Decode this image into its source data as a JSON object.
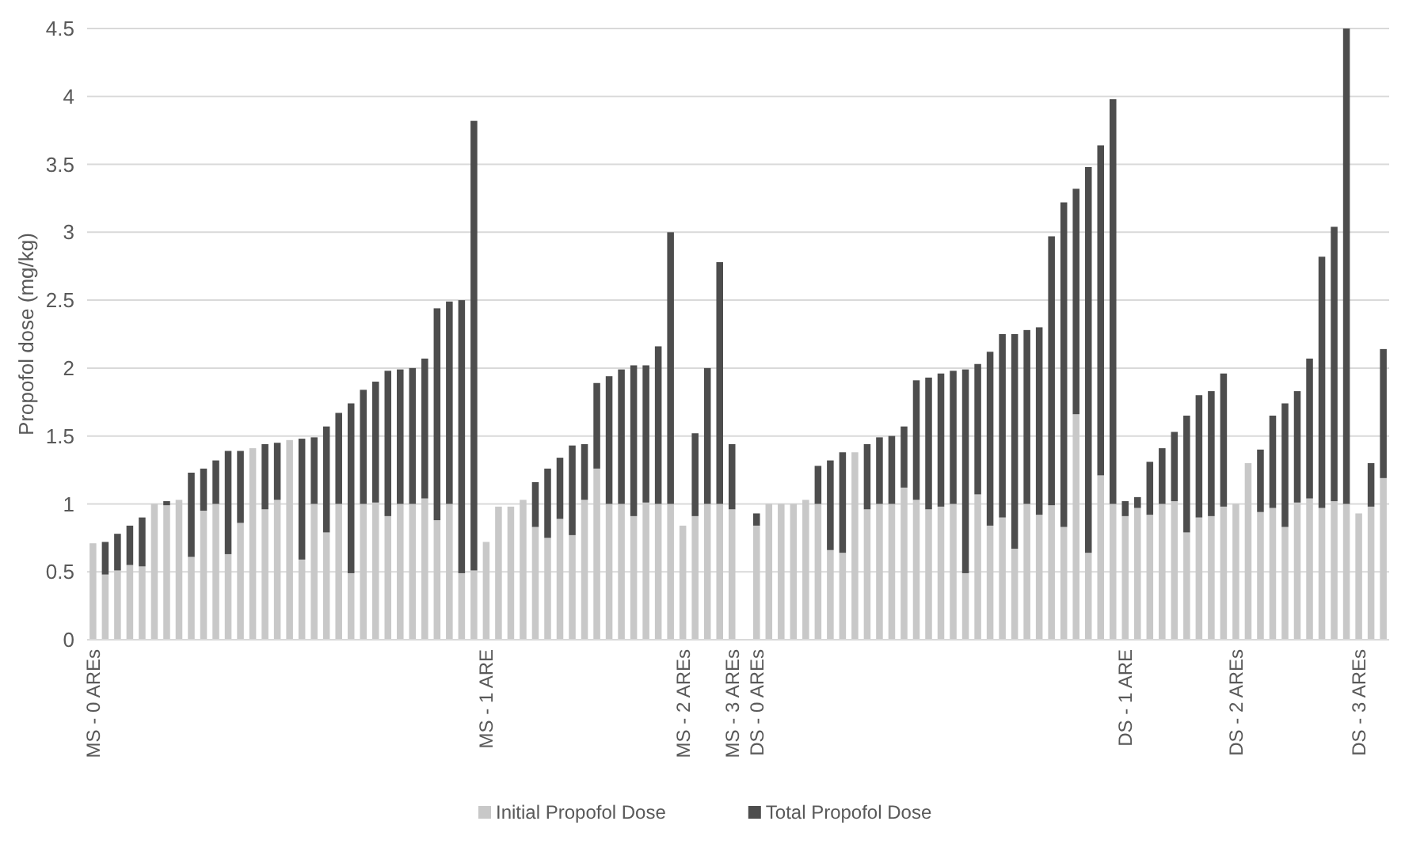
{
  "chart_data": {
    "type": "bar",
    "stacked": true,
    "ylabel": "Propofol dose (mg/kg)",
    "ylim": [
      0,
      4.5
    ],
    "yticks": [
      0,
      0.5,
      1,
      1.5,
      2,
      2.5,
      3,
      3.5,
      4,
      4.5
    ],
    "grid": "y",
    "legend": "bottom",
    "categories": [
      "MS - 0 AREs",
      null,
      null,
      null,
      null,
      null,
      null,
      null,
      null,
      null,
      null,
      null,
      null,
      null,
      null,
      null,
      null,
      null,
      null,
      null,
      null,
      null,
      null,
      null,
      null,
      null,
      null,
      null,
      null,
      null,
      null,
      null,
      "MS - 1 ARE",
      null,
      null,
      null,
      null,
      null,
      null,
      null,
      null,
      null,
      null,
      null,
      null,
      null,
      null,
      null,
      "MS - 2 AREs",
      null,
      null,
      null,
      "MS - 3 AREs",
      null,
      "DS - 0 AREs",
      null,
      null,
      null,
      null,
      null,
      null,
      null,
      null,
      null,
      null,
      null,
      null,
      null,
      null,
      null,
      null,
      null,
      null,
      null,
      null,
      null,
      null,
      null,
      null,
      null,
      null,
      null,
      null,
      null,
      "DS - 1 ARE",
      null,
      null,
      null,
      null,
      null,
      null,
      null,
      null,
      "DS - 2 AREs",
      null,
      null,
      null,
      null,
      null,
      null,
      null,
      null,
      null,
      "DS - 3 AREs",
      null,
      null
    ],
    "series": [
      {
        "name": "Initial Propofol Dose",
        "color": "#c8c8c8",
        "values": [
          0.71,
          0.48,
          0.51,
          0.55,
          0.54,
          1.0,
          0.99,
          1.03,
          0.61,
          0.95,
          1.0,
          0.63,
          0.86,
          1.41,
          0.96,
          1.03,
          1.47,
          0.59,
          1.0,
          0.79,
          1.0,
          0.49,
          1.0,
          1.01,
          0.91,
          1.0,
          1.0,
          1.04,
          0.88,
          1.0,
          0.49,
          0.51,
          0.72,
          0.98,
          0.98,
          1.03,
          0.83,
          0.75,
          0.89,
          0.77,
          1.03,
          1.26,
          1.0,
          1.0,
          0.91,
          1.01,
          1.0,
          1.0,
          0.84,
          0.91,
          1.0,
          1.0,
          0.96,
          null,
          0.84,
          1.0,
          1.0,
          1.0,
          1.03,
          1.0,
          0.66,
          0.64,
          1.38,
          0.96,
          1.0,
          1.0,
          1.12,
          1.03,
          0.96,
          0.98,
          1.0,
          0.49,
          1.07,
          0.84,
          0.9,
          0.67,
          1.0,
          0.92,
          0.99,
          0.83,
          1.66,
          0.64,
          1.21,
          1.0,
          0.91,
          0.97,
          0.92,
          1.0,
          1.02,
          0.79,
          0.9,
          0.91,
          0.98,
          1.0,
          1.3,
          0.94,
          0.97,
          0.83,
          1.01,
          1.04,
          0.97,
          1.02,
          1.0,
          0.93,
          0.98,
          1.19
        ]
      },
      {
        "name": "Total Propofol Dose",
        "color": "#4d4d4d",
        "values": [
          null,
          0.24,
          0.27,
          0.29,
          0.36,
          null,
          0.03,
          null,
          0.62,
          0.31,
          0.32,
          0.76,
          0.53,
          null,
          0.48,
          0.42,
          null,
          0.89,
          0.49,
          0.78,
          0.67,
          1.25,
          0.84,
          0.89,
          1.07,
          0.99,
          1.0,
          1.03,
          1.56,
          1.49,
          2.01,
          3.31,
          null,
          null,
          null,
          null,
          0.33,
          0.51,
          0.45,
          0.66,
          0.41,
          0.63,
          0.94,
          0.99,
          1.11,
          1.01,
          1.16,
          2.0,
          null,
          0.61,
          1.0,
          1.78,
          0.48,
          null,
          0.09,
          null,
          null,
          null,
          null,
          0.28,
          0.66,
          0.74,
          null,
          0.48,
          0.49,
          0.5,
          0.45,
          0.88,
          0.97,
          0.98,
          0.98,
          1.5,
          0.96,
          1.28,
          1.35,
          1.58,
          1.28,
          1.38,
          1.98,
          2.39,
          1.66,
          2.84,
          2.43,
          2.98,
          0.11,
          0.08,
          0.39,
          0.41,
          0.51,
          0.86,
          0.9,
          0.92,
          0.98,
          null,
          null,
          0.46,
          0.68,
          0.91,
          0.82,
          1.03,
          1.85,
          2.02,
          3.5,
          null,
          0.32,
          0.95
        ]
      }
    ]
  }
}
